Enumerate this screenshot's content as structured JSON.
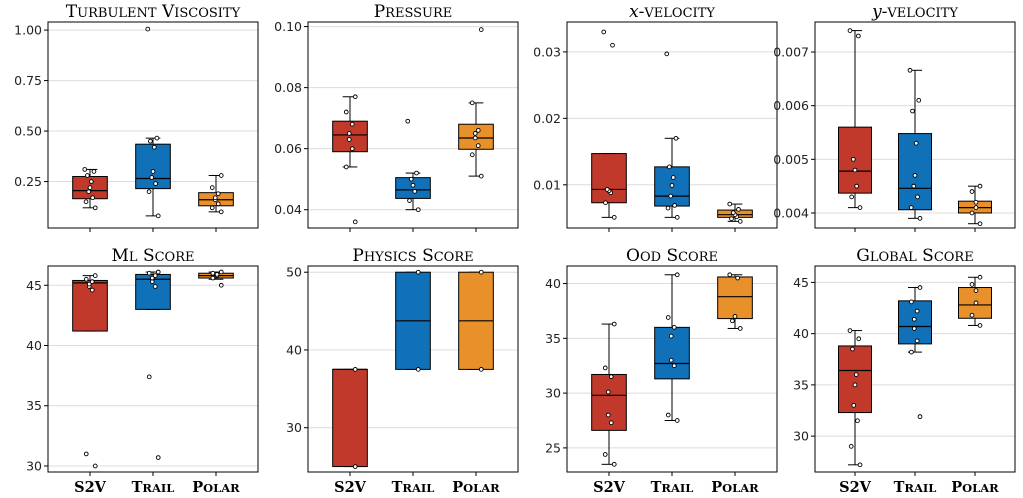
{
  "colors": {
    "S2V": "#c0392b",
    "Trail": "#1070b8",
    "Polar": "#e8902a"
  },
  "chart_data": [
    {
      "type": "box",
      "title": "Turbulent Viscosity",
      "categories": [
        "S2V",
        "Trail",
        "Polar"
      ],
      "ylim": [
        0.02,
        1.04
      ],
      "yticks": [
        0.25,
        0.5,
        0.75,
        1.0
      ],
      "yticklabels": [
        "0.25",
        "0.50",
        "0.75",
        "1.00"
      ],
      "series": [
        {
          "name": "S2V",
          "q1": 0.165,
          "median": 0.205,
          "q3": 0.275,
          "whisker_low": 0.12,
          "whisker_high": 0.31,
          "points": [
            0.12,
            0.15,
            0.17,
            0.2,
            0.22,
            0.25,
            0.28,
            0.3,
            0.31
          ]
        },
        {
          "name": "Trail",
          "q1": 0.215,
          "median": 0.265,
          "q3": 0.435,
          "whisker_low": 0.08,
          "whisker_high": 0.465,
          "points": [
            0.08,
            0.2,
            0.24,
            0.27,
            0.3,
            0.42,
            0.45,
            0.465,
            1.005
          ]
        },
        {
          "name": "Polar",
          "q1": 0.13,
          "median": 0.16,
          "q3": 0.195,
          "whisker_low": 0.1,
          "whisker_high": 0.28,
          "points": [
            0.1,
            0.12,
            0.14,
            0.16,
            0.17,
            0.19,
            0.22,
            0.28
          ]
        }
      ]
    },
    {
      "type": "box",
      "title": "Pressure",
      "categories": [
        "S2V",
        "Trail",
        "Polar"
      ],
      "ylim": [
        0.034,
        0.1015
      ],
      "yticks": [
        0.04,
        0.06,
        0.08,
        0.1
      ],
      "yticklabels": [
        "0.04",
        "0.06",
        "0.08",
        "0.10"
      ],
      "series": [
        {
          "name": "S2V",
          "q1": 0.059,
          "median": 0.0645,
          "q3": 0.069,
          "whisker_low": 0.054,
          "whisker_high": 0.077,
          "points": [
            0.036,
            0.054,
            0.06,
            0.063,
            0.065,
            0.068,
            0.072,
            0.077
          ]
        },
        {
          "name": "Trail",
          "q1": 0.0437,
          "median": 0.0465,
          "q3": 0.0505,
          "whisker_low": 0.04,
          "whisker_high": 0.052,
          "points": [
            0.04,
            0.043,
            0.046,
            0.048,
            0.05,
            0.052,
            0.069
          ]
        },
        {
          "name": "Polar",
          "q1": 0.0598,
          "median": 0.0635,
          "q3": 0.068,
          "whisker_low": 0.051,
          "whisker_high": 0.075,
          "points": [
            0.051,
            0.058,
            0.061,
            0.0635,
            0.065,
            0.066,
            0.075,
            0.099
          ]
        }
      ]
    },
    {
      "type": "box",
      "title": "x-velocity",
      "categories": [
        "S2V",
        "Trail",
        "Polar"
      ],
      "ylim": [
        0.0035,
        0.0345
      ],
      "yticks": [
        0.01,
        0.02,
        0.03
      ],
      "yticklabels": [
        "0.01",
        "0.02",
        "0.03"
      ],
      "series": [
        {
          "name": "S2V",
          "q1": 0.0073,
          "median": 0.0093,
          "q3": 0.0147,
          "whisker_low": 0.0051,
          "whisker_high": 0.0147,
          "points": [
            0.0051,
            0.0073,
            0.0088,
            0.0091,
            0.0093,
            0.031,
            0.033
          ]
        },
        {
          "name": "Trail",
          "q1": 0.0068,
          "median": 0.0083,
          "q3": 0.0127,
          "whisker_low": 0.0051,
          "whisker_high": 0.017,
          "points": [
            0.0051,
            0.0065,
            0.0069,
            0.0083,
            0.0099,
            0.0111,
            0.0127,
            0.017,
            0.0297
          ]
        },
        {
          "name": "Polar",
          "q1": 0.0051,
          "median": 0.0055,
          "q3": 0.0062,
          "whisker_low": 0.0045,
          "whisker_high": 0.0071,
          "points": [
            0.0045,
            0.0049,
            0.0052,
            0.0055,
            0.0058,
            0.0063,
            0.0071
          ]
        }
      ]
    },
    {
      "type": "box",
      "title": "y-velocity",
      "categories": [
        "S2V",
        "Trail",
        "Polar"
      ],
      "ylim": [
        0.00372,
        0.00756
      ],
      "yticks": [
        0.004,
        0.005,
        0.006,
        0.007
      ],
      "yticklabels": [
        "0.004",
        "0.005",
        "0.006",
        "0.007"
      ],
      "series": [
        {
          "name": "S2V",
          "q1": 0.00437,
          "median": 0.00478,
          "q3": 0.0056,
          "whisker_low": 0.0041,
          "whisker_high": 0.0074,
          "points": [
            0.0041,
            0.0043,
            0.0045,
            0.0048,
            0.005,
            0.0073,
            0.0074
          ]
        },
        {
          "name": "Trail",
          "q1": 0.00406,
          "median": 0.00446,
          "q3": 0.00548,
          "whisker_low": 0.0039,
          "whisker_high": 0.00666,
          "points": [
            0.0039,
            0.0041,
            0.0043,
            0.0045,
            0.0047,
            0.0053,
            0.0059,
            0.0061,
            0.00666
          ]
        },
        {
          "name": "Polar",
          "q1": 0.004,
          "median": 0.0041,
          "q3": 0.00422,
          "whisker_low": 0.0038,
          "whisker_high": 0.0045,
          "points": [
            0.0038,
            0.004,
            0.0041,
            0.0042,
            0.0044,
            0.0045
          ]
        }
      ]
    },
    {
      "type": "box",
      "title": "ML Score",
      "categories": [
        "S2V",
        "Trail",
        "Polar"
      ],
      "ylim": [
        29.5,
        46.6
      ],
      "yticks": [
        30,
        35,
        40,
        45
      ],
      "yticklabels": [
        "30",
        "35",
        "40",
        "45"
      ],
      "series": [
        {
          "name": "S2V",
          "q1": 41.2,
          "median": 45.2,
          "q3": 45.4,
          "whisker_low": 41.2,
          "whisker_high": 45.8,
          "points": [
            30.0,
            31.0,
            44.6,
            44.9,
            45.1,
            45.3,
            45.5,
            45.8
          ]
        },
        {
          "name": "Trail",
          "q1": 43.0,
          "median": 45.5,
          "q3": 45.9,
          "whisker_low": 43.0,
          "whisker_high": 46.1,
          "points": [
            30.7,
            37.4,
            44.9,
            45.3,
            45.6,
            45.8,
            46.0,
            46.1
          ]
        },
        {
          "name": "Polar",
          "q1": 45.6,
          "median": 45.8,
          "q3": 46.0,
          "whisker_low": 45.5,
          "whisker_high": 46.1,
          "points": [
            45.0,
            45.6,
            45.8,
            45.9,
            46.0,
            46.1
          ]
        }
      ]
    },
    {
      "type": "box",
      "title": "Physics Score",
      "categories": [
        "S2V",
        "Trail",
        "Polar"
      ],
      "ylim": [
        24.3,
        50.8
      ],
      "yticks": [
        30,
        40,
        50
      ],
      "yticklabels": [
        "30",
        "40",
        "50"
      ],
      "series": [
        {
          "name": "S2V",
          "q1": 25.0,
          "median": 37.5,
          "q3": 37.5,
          "whisker_low": 25.0,
          "whisker_high": 37.5,
          "points": [
            25.0,
            37.5
          ]
        },
        {
          "name": "Trail",
          "q1": 37.5,
          "median": 43.75,
          "q3": 50.0,
          "whisker_low": 37.5,
          "whisker_high": 50.0,
          "points": [
            37.5,
            50.0
          ]
        },
        {
          "name": "Polar",
          "q1": 37.5,
          "median": 43.75,
          "q3": 50.0,
          "whisker_low": 37.5,
          "whisker_high": 50.0,
          "points": [
            37.5,
            50.0
          ]
        }
      ]
    },
    {
      "type": "box",
      "title": "OOD Score",
      "categories": [
        "S2V",
        "Trail",
        "Polar"
      ],
      "ylim": [
        22.8,
        41.6
      ],
      "yticks": [
        25,
        30,
        35,
        40
      ],
      "yticklabels": [
        "25",
        "30",
        "35",
        "40"
      ],
      "series": [
        {
          "name": "S2V",
          "q1": 26.6,
          "median": 29.8,
          "q3": 31.7,
          "whisker_low": 23.5,
          "whisker_high": 36.3,
          "points": [
            23.5,
            24.4,
            27.3,
            28.0,
            30.1,
            31.5,
            32.3,
            36.3
          ]
        },
        {
          "name": "Trail",
          "q1": 31.3,
          "median": 32.7,
          "q3": 36.0,
          "whisker_low": 27.5,
          "whisker_high": 40.8,
          "points": [
            27.5,
            28.0,
            32.5,
            33.0,
            35.2,
            36.0,
            36.9,
            40.8
          ]
        },
        {
          "name": "Polar",
          "q1": 36.8,
          "median": 38.8,
          "q3": 40.6,
          "whisker_low": 35.9,
          "whisker_high": 40.8,
          "points": [
            35.9,
            36.6,
            37.0,
            40.5,
            40.8
          ]
        }
      ]
    },
    {
      "type": "box",
      "title": "Global Score",
      "categories": [
        "S2V",
        "Trail",
        "Polar"
      ],
      "ylim": [
        26.5,
        46.6
      ],
      "yticks": [
        30,
        35,
        40,
        45
      ],
      "yticklabels": [
        "30",
        "35",
        "40",
        "45"
      ],
      "series": [
        {
          "name": "S2V",
          "q1": 32.3,
          "median": 36.4,
          "q3": 38.8,
          "whisker_low": 27.2,
          "whisker_high": 40.3,
          "points": [
            27.2,
            29.0,
            31.5,
            33.0,
            35.0,
            36.0,
            38.5,
            39.5,
            40.3
          ]
        },
        {
          "name": "Trail",
          "q1": 39.0,
          "median": 40.7,
          "q3": 43.2,
          "whisker_low": 38.2,
          "whisker_high": 44.5,
          "points": [
            31.9,
            38.2,
            39.3,
            40.5,
            41.4,
            42.2,
            43.1,
            44.5
          ]
        },
        {
          "name": "Polar",
          "q1": 41.5,
          "median": 42.8,
          "q3": 44.5,
          "whisker_low": 40.8,
          "whisker_high": 45.5,
          "points": [
            40.8,
            41.8,
            43.0,
            44.2,
            44.8,
            45.5
          ]
        }
      ]
    }
  ]
}
